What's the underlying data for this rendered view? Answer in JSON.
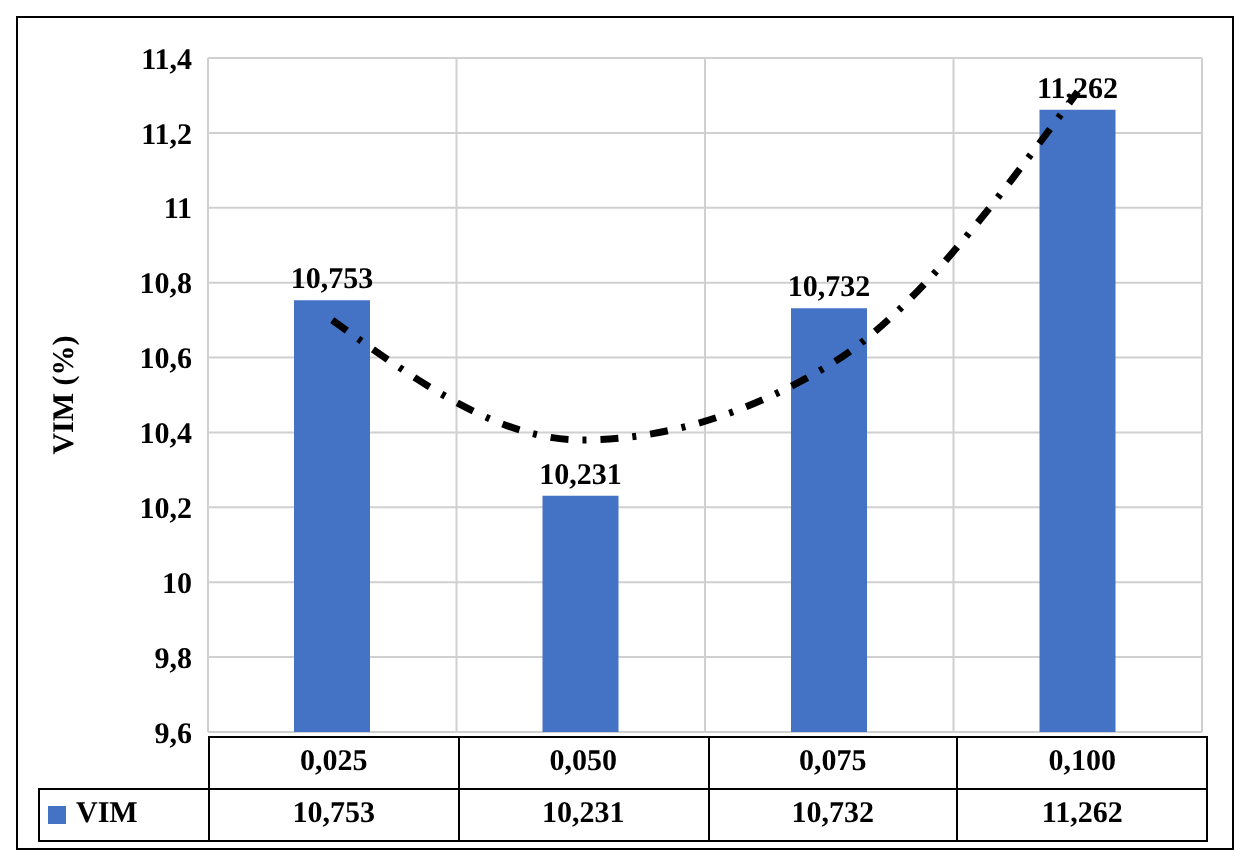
{
  "chart_data": {
    "type": "bar",
    "ylabel": "VIM (%)",
    "categories": [
      "0,025",
      "0,050",
      "0,075",
      "0,100"
    ],
    "series": [
      {
        "name": "VIM",
        "color": "#4472c4",
        "values": [
          10.753,
          10.231,
          10.732,
          11.262
        ],
        "value_labels": [
          "10,753",
          "10,231",
          "10,732",
          "11,262"
        ]
      },
      {
        "type": "line",
        "color": "#000000",
        "line_style": "dashed",
        "x": [
          "0,025",
          "0,050",
          "0,075",
          "0,100"
        ],
        "values": [
          10.7,
          10.38,
          10.58,
          11.31
        ]
      }
    ],
    "ylim": [
      9.6,
      11.4
    ],
    "yticks": [
      {
        "value": 9.6,
        "label": "9,6"
      },
      {
        "value": 9.8,
        "label": "9,8"
      },
      {
        "value": 10,
        "label": "10"
      },
      {
        "value": 10.2,
        "label": "10,2"
      },
      {
        "value": 10.4,
        "label": "10,4"
      },
      {
        "value": 10.6,
        "label": "10,6"
      },
      {
        "value": 10.8,
        "label": "10,8"
      },
      {
        "value": 11,
        "label": "11"
      },
      {
        "value": 11.2,
        "label": "11,2"
      },
      {
        "value": 11.4,
        "label": "11,4"
      }
    ],
    "grid": true,
    "legend": "bottom"
  }
}
